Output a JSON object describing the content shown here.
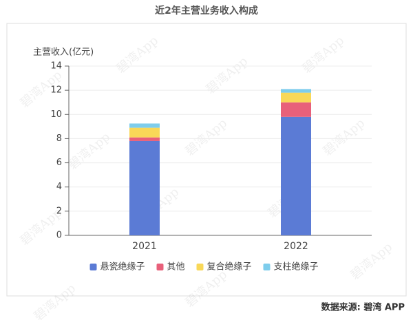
{
  "chart_data": {
    "type": "stacked_bar",
    "title": "近2年主营业务收入构成",
    "y_label": "主营收入(亿元)",
    "categories": [
      "2021",
      "2022"
    ],
    "series": [
      {
        "name": "悬瓷绝缘子",
        "color": "#5b7bd5",
        "values": [
          7.8,
          9.8
        ]
      },
      {
        "name": "其他",
        "color": "#e8607a",
        "values": [
          0.3,
          1.2
        ]
      },
      {
        "name": "复合绝缘子",
        "color": "#f9d858",
        "values": [
          0.8,
          0.8
        ]
      },
      {
        "name": "支柱绝缘子",
        "color": "#7ecdec",
        "values": [
          0.35,
          0.3
        ]
      }
    ],
    "ylim": [
      0,
      14
    ],
    "yticks": [
      0,
      2,
      4,
      6,
      8,
      10,
      12,
      14
    ],
    "grid": true,
    "legend": "bottom",
    "source": "数据来源: 碧湾 APP",
    "watermark": "碧湾App"
  }
}
